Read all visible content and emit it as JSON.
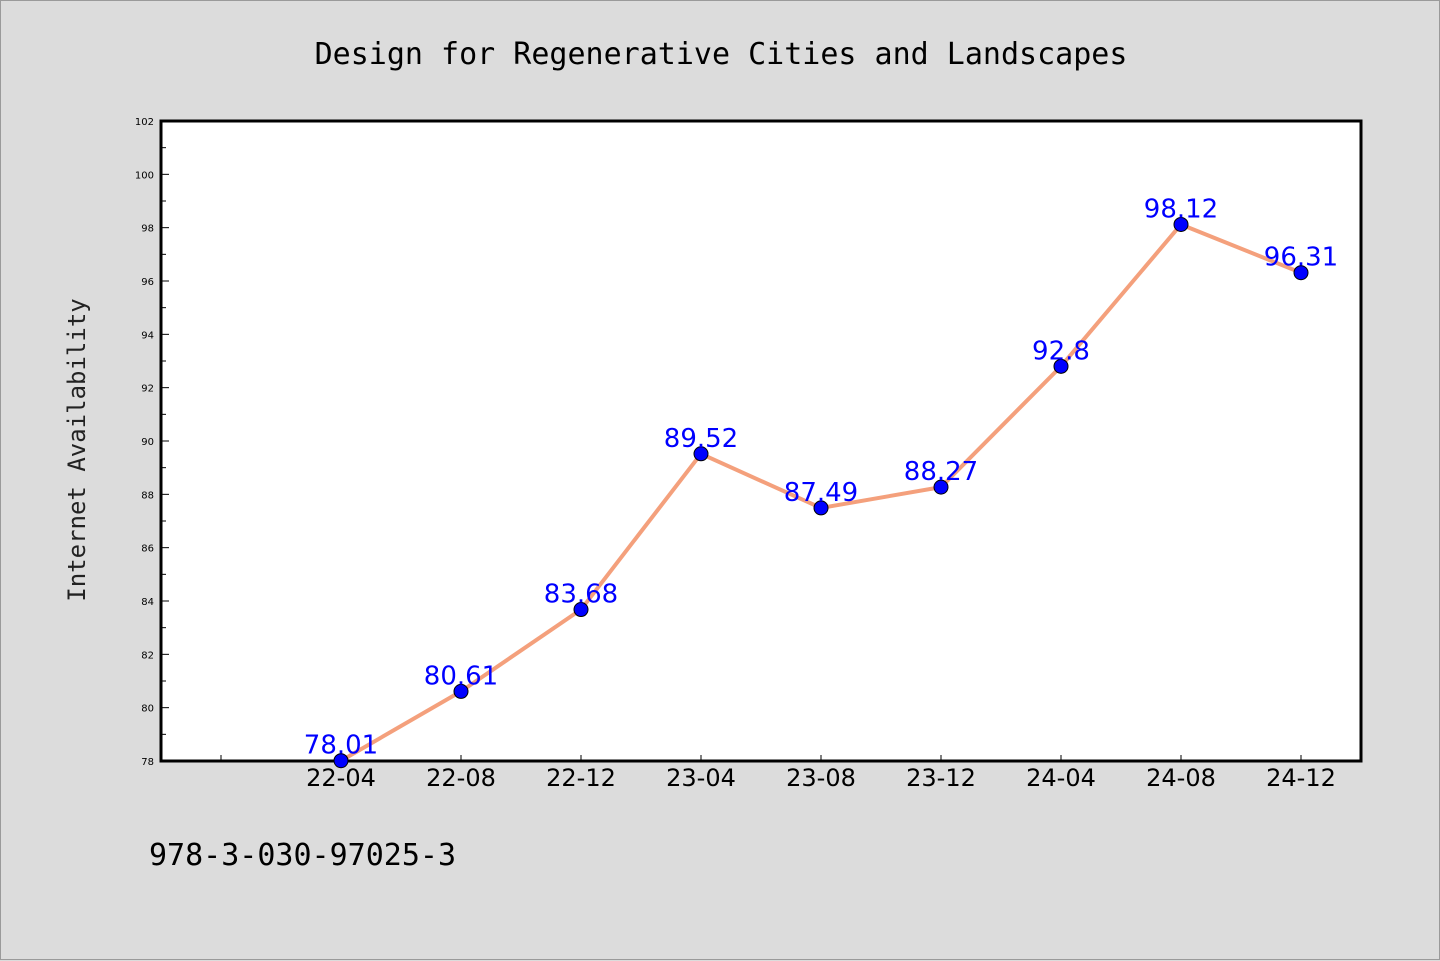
{
  "chart_data": {
    "type": "line",
    "title": "Design for Regenerative Cities and Landscapes",
    "xlabel": "",
    "ylabel": "Internet Availability",
    "categories": [
      "22-04",
      "22-08",
      "22-12",
      "23-04",
      "23-08",
      "23-12",
      "24-04",
      "24-08",
      "24-12"
    ],
    "series": [
      {
        "values": [
          78.01,
          80.61,
          83.68,
          89.52,
          87.49,
          88.27,
          92.8,
          98.12,
          96.31
        ],
        "data_labels": [
          "78.01",
          "80.61",
          "83.68",
          "89.52",
          "87.49",
          "88.27",
          "92.8",
          "98.12",
          "96.31"
        ]
      }
    ],
    "ylim": [
      78,
      102
    ],
    "yticks": [
      78,
      80,
      82,
      84,
      86,
      88,
      90,
      92,
      94,
      96,
      98,
      100,
      102
    ],
    "grid": false,
    "legend": "none",
    "colors": {
      "line": "#f4a07c",
      "marker": "#0000ff",
      "label": "#0000ff",
      "background": "#dcdcdc",
      "plot_background": "#ffffff"
    }
  },
  "footnote": "978-3-030-97025-3"
}
